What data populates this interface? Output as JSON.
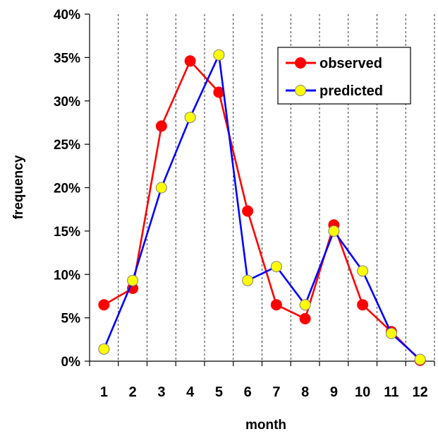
{
  "chart_data": {
    "type": "line",
    "title": "",
    "xlabel": "month",
    "ylabel": "frequency",
    "categories": [
      "1",
      "2",
      "3",
      "4",
      "5",
      "6",
      "7",
      "8",
      "9",
      "10",
      "11",
      "12"
    ],
    "y_ticks": [
      "0%",
      "5%",
      "10%",
      "15%",
      "20%",
      "25%",
      "30%",
      "35%",
      "40%"
    ],
    "ylim": [
      0,
      40
    ],
    "y_unit": "%",
    "grid": "vertical dashed lines between months",
    "legend_position": "top-right",
    "series": [
      {
        "name": "observed",
        "line_color": "#ff0000",
        "marker_color": "#ff0000",
        "values": [
          6.5,
          8.4,
          27.1,
          34.6,
          31.0,
          17.3,
          6.5,
          4.9,
          15.7,
          6.5,
          3.4,
          0.1
        ]
      },
      {
        "name": "predicted",
        "line_color": "#0000ff",
        "marker_color": "#ffff00",
        "values": [
          1.4,
          9.3,
          20.0,
          28.1,
          35.3,
          9.3,
          10.9,
          6.5,
          15.0,
          10.4,
          3.2,
          0.2
        ]
      }
    ]
  }
}
